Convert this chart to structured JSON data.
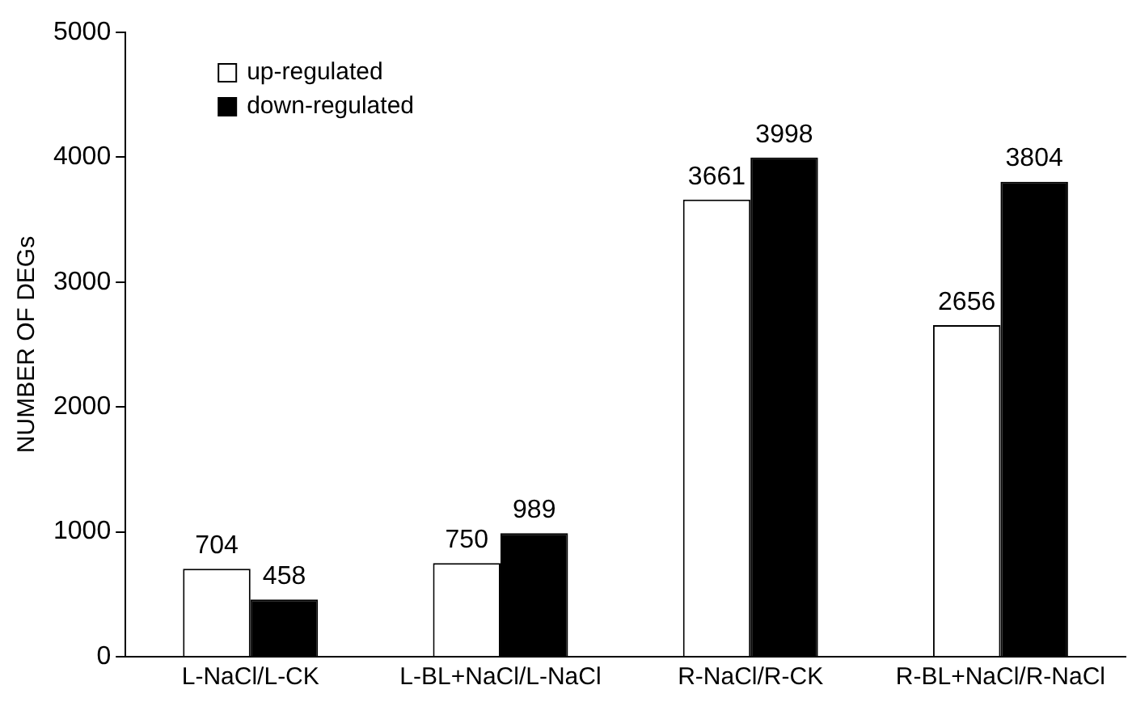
{
  "chart_data": {
    "type": "bar",
    "ylabel": "NUMBER OF DEGs",
    "categories": [
      "L-NaCl/L-CK",
      "L-BL+NaCl/L-NaCl",
      "R-NaCl/R-CK",
      "R-BL+NaCl/R-NaCl"
    ],
    "series": [
      {
        "name": "up-regulated",
        "color": "#ffffff",
        "values": [
          704,
          750,
          3661,
          2656
        ]
      },
      {
        "name": "down-regulated",
        "color": "#000000",
        "values": [
          458,
          989,
          3998,
          3804
        ]
      }
    ],
    "ylim": [
      0,
      5000
    ],
    "yticks": [
      0,
      1000,
      2000,
      3000,
      4000,
      5000
    ],
    "grid": false,
    "legend": "top left",
    "data_labels": true
  }
}
